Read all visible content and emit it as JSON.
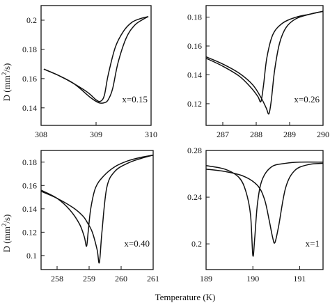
{
  "figure": {
    "ylabel_main": "D (mm",
    "ylabel_sup": "2",
    "ylabel_tail": "/s)",
    "xlabel": "Temperature (K)"
  },
  "chart_data": [
    {
      "type": "line",
      "annotation": "x=0.15",
      "xlim": [
        308,
        310
      ],
      "ylim": [
        0.128,
        0.21
      ],
      "xticks": [
        308,
        309,
        310
      ],
      "xtick_labels": [
        "308",
        "309",
        "310"
      ],
      "yticks": [
        0.14,
        0.16,
        0.18,
        0.2
      ],
      "ytick_labels": [
        "0.14",
        "0.16",
        "0.18",
        "0.2"
      ],
      "series": [
        {
          "x": [
            308.05,
            308.3,
            308.6,
            308.9,
            309.05,
            309.15,
            309.22,
            309.3,
            309.4,
            309.55,
            309.7,
            309.85,
            309.95
          ],
          "y": [
            0.1665,
            0.1625,
            0.1565,
            0.147,
            0.1435,
            0.1435,
            0.1455,
            0.153,
            0.171,
            0.188,
            0.1965,
            0.2005,
            0.2025
          ]
        },
        {
          "x": [
            308.05,
            308.3,
            308.6,
            308.85,
            309.0,
            309.08,
            309.15,
            309.22,
            309.35,
            309.5,
            309.65,
            309.8,
            309.95
          ],
          "y": [
            0.1665,
            0.1625,
            0.1565,
            0.1505,
            0.1455,
            0.1445,
            0.1485,
            0.1625,
            0.1815,
            0.1925,
            0.1985,
            0.201,
            0.2025
          ]
        }
      ]
    },
    {
      "type": "line",
      "annotation": "x=0.26",
      "xlim": [
        286.5,
        290
      ],
      "ylim": [
        0.105,
        0.188
      ],
      "xticks": [
        287,
        288,
        289,
        290
      ],
      "xtick_labels": [
        "287",
        "288",
        "289",
        "290"
      ],
      "yticks": [
        0.12,
        0.14,
        0.16,
        0.18
      ],
      "ytick_labels": [
        "0.12",
        "0.14",
        "0.16",
        "0.18"
      ],
      "series": [
        {
          "x": [
            286.5,
            287.0,
            287.5,
            287.9,
            288.15,
            288.3,
            288.38,
            288.45,
            288.55,
            288.7,
            288.9,
            289.2,
            289.6,
            290.0
          ],
          "y": [
            0.1525,
            0.1475,
            0.141,
            0.133,
            0.124,
            0.117,
            0.113,
            0.122,
            0.143,
            0.162,
            0.173,
            0.179,
            0.182,
            0.184
          ]
        },
        {
          "x": [
            286.5,
            287.0,
            287.5,
            287.85,
            288.05,
            288.14,
            288.22,
            288.32,
            288.5,
            288.8,
            289.2,
            289.6,
            290.0
          ],
          "y": [
            0.1515,
            0.146,
            0.139,
            0.131,
            0.125,
            0.1215,
            0.133,
            0.152,
            0.168,
            0.176,
            0.18,
            0.182,
            0.184
          ]
        }
      ]
    },
    {
      "type": "line",
      "annotation": "x=0.40",
      "xlim": [
        257.5,
        261
      ],
      "ylim": [
        0.088,
        0.19
      ],
      "xticks": [
        258,
        259,
        260,
        261
      ],
      "xtick_labels": [
        "258",
        "259",
        "260",
        "261"
      ],
      "yticks": [
        0.1,
        0.12,
        0.14,
        0.16,
        0.18
      ],
      "ytick_labels": [
        "0.1",
        "0.12",
        "0.14",
        "0.16",
        "0.18"
      ],
      "series": [
        {
          "x": [
            257.5,
            258.0,
            258.5,
            258.8,
            258.95,
            259.1,
            259.25,
            259.32,
            259.4,
            259.55,
            259.8,
            260.2,
            260.6,
            261.0
          ],
          "y": [
            0.155,
            0.149,
            0.141,
            0.134,
            0.128,
            0.12,
            0.105,
            0.094,
            0.12,
            0.158,
            0.172,
            0.179,
            0.183,
            0.186
          ]
        },
        {
          "x": [
            257.5,
            258.0,
            258.4,
            258.7,
            258.85,
            258.92,
            258.97,
            259.05,
            259.2,
            259.45,
            259.8,
            260.2,
            260.6,
            261.0
          ],
          "y": [
            0.156,
            0.149,
            0.139,
            0.127,
            0.116,
            0.108,
            0.12,
            0.14,
            0.158,
            0.168,
            0.176,
            0.181,
            0.184,
            0.186
          ]
        }
      ]
    },
    {
      "type": "line",
      "annotation": "x=1",
      "xlim": [
        189,
        191.5
      ],
      "ylim": [
        0.178,
        0.28
      ],
      "xticks": [
        189,
        190,
        191
      ],
      "xtick_labels": [
        "189",
        "190",
        "191"
      ],
      "yticks": [
        0.2,
        0.24,
        0.28
      ],
      "ytick_labels": [
        "0.2",
        "0.24",
        "0.28"
      ],
      "series": [
        {
          "x": [
            189.0,
            189.4,
            189.7,
            189.85,
            189.95,
            190.0,
            190.04,
            190.1,
            190.2,
            190.4,
            190.7,
            191.0,
            191.5
          ],
          "y": [
            0.267,
            0.264,
            0.257,
            0.245,
            0.225,
            0.19,
            0.205,
            0.235,
            0.255,
            0.266,
            0.269,
            0.27,
            0.27
          ]
        },
        {
          "x": [
            189.0,
            189.4,
            189.8,
            190.1,
            190.25,
            190.35,
            190.42,
            190.47,
            190.55,
            190.7,
            190.9,
            191.2,
            191.5
          ],
          "y": [
            0.264,
            0.262,
            0.258,
            0.25,
            0.238,
            0.22,
            0.206,
            0.201,
            0.215,
            0.248,
            0.263,
            0.268,
            0.269
          ]
        }
      ]
    }
  ]
}
